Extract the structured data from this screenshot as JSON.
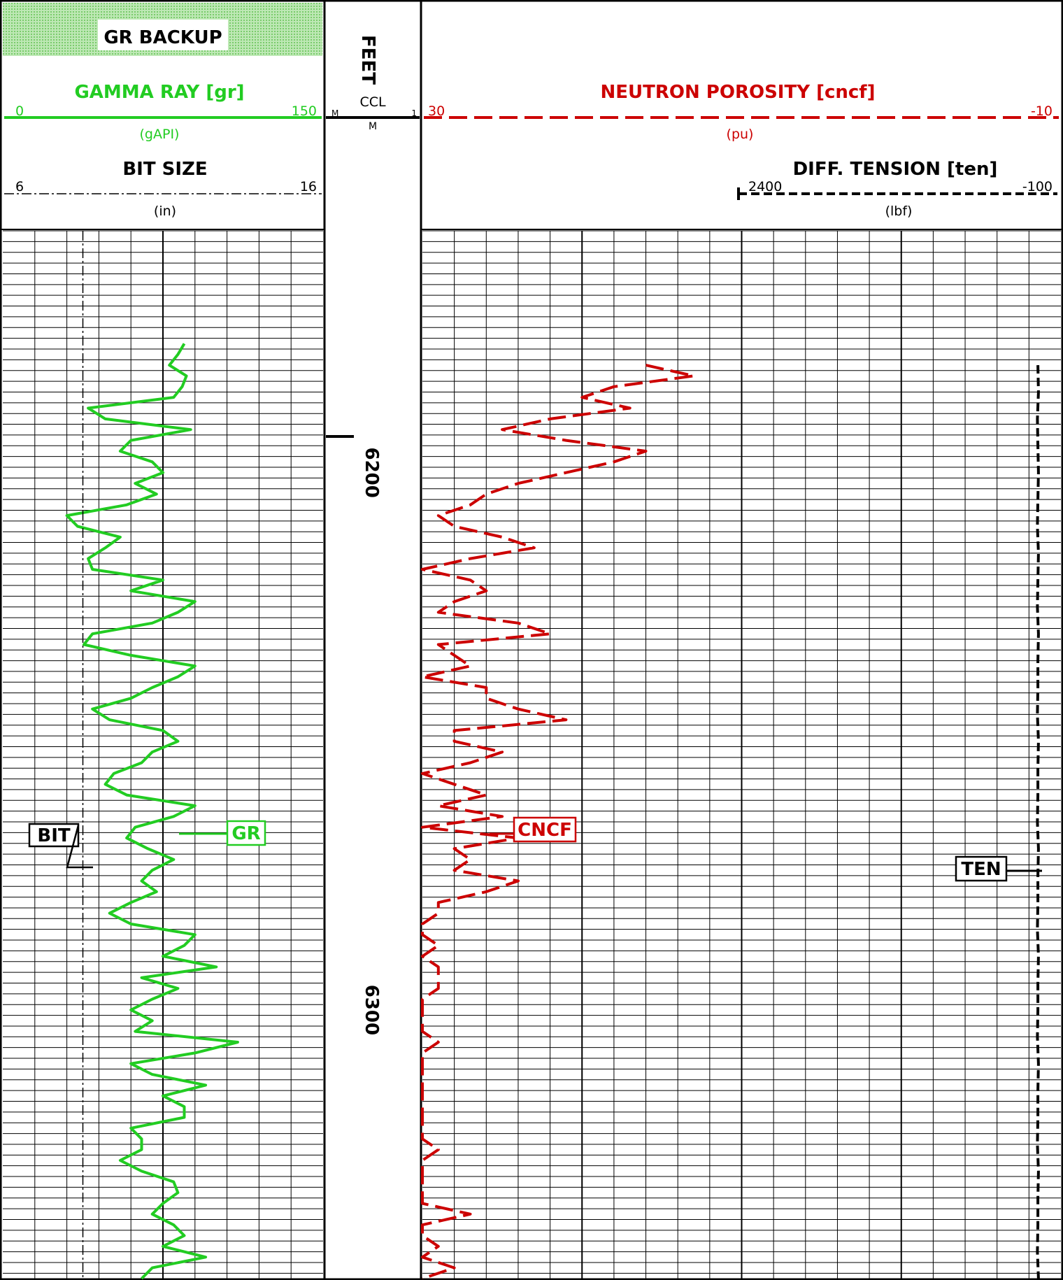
{
  "header": {
    "banner": "GR BACKUP",
    "depth_track_title": "FEET",
    "gamma": {
      "name": "GAMMA RAY  [gr]",
      "min": "0",
      "max": "150",
      "unit": "(gAPI)",
      "color": "#22cc22"
    },
    "bitsize": {
      "name": "BIT SIZE",
      "min": "6",
      "max": "16",
      "unit": "(in)",
      "color": "#000000"
    },
    "ccl": {
      "name": "CCL",
      "min": "M",
      "max": "1",
      "unit": "M"
    },
    "neutron": {
      "name": "NEUTRON POROSITY  [cncf]",
      "min": "30",
      "max": "-10",
      "unit": "(pu)",
      "color": "#cc0000"
    },
    "tension": {
      "name": "DIFF. TENSION  [ten]",
      "min": "2400",
      "max": "-100",
      "unit": "(lbf)",
      "color": "#000000"
    }
  },
  "labels": {
    "bit": "BIT",
    "gr": "GR",
    "cncf": "CNCF",
    "ten": "TEN"
  },
  "chart_data": {
    "type": "line",
    "depth_unit": "FEET",
    "depth_range": [
      6155,
      6350
    ],
    "depth_ticks": [
      6200,
      6300
    ],
    "tracks": [
      {
        "name": "track1",
        "series": [
          {
            "name": "GR",
            "unit": "gAPI",
            "scale": [
              0,
              150
            ],
            "color": "#22cc22",
            "depth": [
              6176,
              6178,
              6180,
              6182,
              6184,
              6186,
              6188,
              6190,
              6192,
              6194,
              6196,
              6198,
              6200,
              6202,
              6204,
              6206,
              6208,
              6210,
              6212,
              6214,
              6216,
              6218,
              6220,
              6222,
              6224,
              6226,
              6228,
              6230,
              6232,
              6234,
              6236,
              6238,
              6240,
              6242,
              6244,
              6246,
              6248,
              6250,
              6252,
              6254,
              6256,
              6258,
              6260,
              6262,
              6264,
              6266,
              6268,
              6270,
              6272,
              6274,
              6276,
              6278,
              6280,
              6282,
              6284,
              6286,
              6288,
              6290,
              6292,
              6294,
              6296,
              6298,
              6300,
              6302,
              6304,
              6306,
              6308,
              6310,
              6312,
              6314,
              6316,
              6318,
              6320,
              6322,
              6324,
              6326,
              6328,
              6330,
              6332,
              6334,
              6336,
              6338,
              6340,
              6342,
              6344,
              6346,
              6348,
              6350
            ],
            "values": [
              85,
              82,
              78,
              86,
              84,
              80,
              40,
              48,
              88,
              60,
              55,
              70,
              75,
              62,
              72,
              58,
              30,
              35,
              55,
              48,
              40,
              42,
              75,
              60,
              90,
              82,
              70,
              42,
              38,
              60,
              90,
              82,
              70,
              60,
              42,
              50,
              75,
              82,
              70,
              65,
              52,
              48,
              58,
              90,
              80,
              62,
              58,
              68,
              80,
              70,
              65,
              72,
              60,
              50,
              60,
              90,
              85,
              75,
              100,
              65,
              82,
              70,
              60,
              70,
              62,
              110,
              90,
              60,
              70,
              95,
              75,
              85,
              85,
              60,
              65,
              65,
              55,
              65,
              80,
              82,
              75,
              70,
              80,
              85,
              75,
              95,
              70,
              65
            ]
          },
          {
            "name": "BIT",
            "unit": "in",
            "scale": [
              6,
              16
            ],
            "color": "#000000",
            "depth": [
              6155,
              6350
            ],
            "values": [
              8.5,
              8.5
            ]
          }
        ]
      },
      {
        "name": "track2",
        "series": [
          {
            "name": "CNCF",
            "unit": "pu",
            "scale": [
              30,
              -10
            ],
            "color": "#cc0000",
            "depth": [
              6180,
              6182,
              6184,
              6186,
              6188,
              6190,
              6192,
              6194,
              6196,
              6198,
              6200,
              6202,
              6204,
              6206,
              6208,
              6210,
              6212,
              6214,
              6216,
              6218,
              6220,
              6222,
              6224,
              6226,
              6228,
              6230,
              6232,
              6234,
              6236,
              6238,
              6240,
              6242,
              6244,
              6246,
              6248,
              6250,
              6252,
              6254,
              6256,
              6258,
              6260,
              6262,
              6264,
              6266,
              6268,
              6270,
              6272,
              6274,
              6276,
              6278,
              6280,
              6282,
              6284,
              6286,
              6288,
              6290,
              6292,
              6294,
              6296,
              6298,
              6300,
              6302,
              6304,
              6306,
              6308,
              6310,
              6312,
              6314,
              6316,
              6318,
              6320,
              6322,
              6324,
              6326,
              6328,
              6330,
              6332,
              6334,
              6336,
              6338,
              6340,
              6342,
              6344,
              6346,
              6348,
              6350
            ],
            "values": [
              16,
              13,
              18,
              20,
              17,
              22,
              25,
              21,
              16,
              18,
              21,
              24,
              26,
              27,
              29,
              28,
              25,
              23,
              27,
              30,
              27,
              26,
              28,
              29,
              24,
              22,
              29,
              28,
              27,
              30,
              26,
              26,
              24,
              21,
              28,
              28,
              25,
              27,
              30,
              28,
              26,
              29,
              25,
              30,
              24,
              28,
              27,
              28,
              24,
              26,
              29,
              29,
              30,
              30,
              29,
              30,
              29,
              29,
              29,
              30,
              30,
              30,
              30,
              29,
              30,
              30,
              30,
              30,
              30,
              30,
              30,
              30,
              30,
              29,
              30,
              30,
              30,
              30,
              30,
              27,
              30,
              30,
              29,
              30,
              28,
              30
            ]
          },
          {
            "name": "TEN",
            "unit": "lbf",
            "scale": [
              2400,
              -100
            ],
            "color": "#000000",
            "depth": [
              6180,
              6185,
              6190,
              6195,
              6200,
              6205,
              6210,
              6215,
              6220,
              6225,
              6230,
              6235,
              6240,
              6245,
              6250,
              6255,
              6260,
              6265,
              6270,
              6275,
              6280,
              6285,
              6290,
              6295,
              6300,
              6305,
              6310,
              6315,
              6320,
              6325,
              6330,
              6335,
              6340,
              6345,
              6350
            ],
            "values": [
              -10,
              -12,
              -8,
              -10,
              -12,
              -10,
              -8,
              -12,
              -10,
              -8,
              -12,
              -10,
              -10,
              -8,
              -12,
              -10,
              -10,
              -8,
              -12,
              -10,
              -10,
              -8,
              -12,
              -10,
              -10,
              -8,
              -12,
              -10,
              -10,
              -8,
              -12,
              -10,
              -10,
              -8,
              -12
            ]
          }
        ]
      }
    ]
  }
}
